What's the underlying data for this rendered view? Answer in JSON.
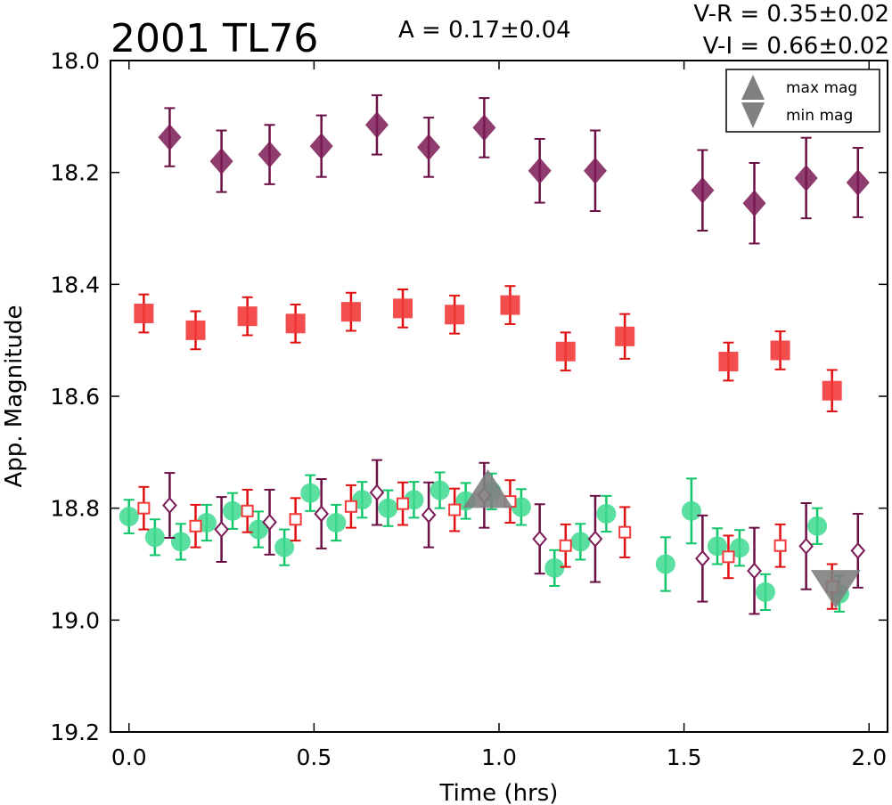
{
  "chart_data": {
    "type": "scatter",
    "title": "2001 TL76",
    "amplitude": "A  = 0.17±0.04",
    "colors_vr": "V-R = 0.35±0.02",
    "colors_vi": "V-I  = 0.66±0.02",
    "xlabel": "Time (hrs)",
    "ylabel": "App. Magnitude",
    "xlim": [
      -0.05,
      2.05
    ],
    "ylim": [
      19.2,
      18.0
    ],
    "y_inverted": true,
    "x_ticks": [
      "0.0",
      "0.5",
      "1.0",
      "1.5",
      "2.0"
    ],
    "y_ticks": [
      "18.0",
      "18.2",
      "18.4",
      "18.6",
      "18.8",
      "19.0",
      "19.2"
    ],
    "legend": {
      "placement": "top-right",
      "entries": [
        {
          "label": "max mag",
          "marker": "triangle-up",
          "color": "#808080"
        },
        {
          "label": "min mag",
          "marker": "triangle-down",
          "color": "#808080"
        }
      ]
    },
    "series": [
      {
        "marker": "diamond",
        "color": "#7b1a55",
        "ecolor": "#6b1045",
        "x": [
          0.11,
          0.25,
          0.38,
          0.52,
          0.67,
          0.81,
          0.96,
          1.11,
          1.26,
          1.55,
          1.69,
          1.83,
          1.97
        ],
        "y": [
          18.137,
          18.18,
          18.168,
          18.153,
          18.115,
          18.155,
          18.12,
          18.197,
          18.197,
          18.232,
          18.255,
          18.21,
          18.218
        ],
        "err": [
          0.052,
          0.055,
          0.053,
          0.055,
          0.053,
          0.053,
          0.053,
          0.057,
          0.072,
          0.072,
          0.072,
          0.072,
          0.062
        ]
      },
      {
        "marker": "square",
        "color": "#f23a3a",
        "ecolor": "#e01010",
        "x": [
          0.04,
          0.18,
          0.32,
          0.45,
          0.6,
          0.74,
          0.88,
          1.03,
          1.18,
          1.34,
          1.62,
          1.76,
          1.9
        ],
        "y": [
          18.452,
          18.482,
          18.457,
          18.47,
          18.449,
          18.443,
          18.454,
          18.437,
          18.52,
          18.493,
          18.538,
          18.518,
          18.59
        ],
        "err": [
          0.034,
          0.034,
          0.034,
          0.034,
          0.034,
          0.034,
          0.034,
          0.034,
          0.034,
          0.04,
          0.034,
          0.034,
          0.037
        ]
      },
      {
        "marker": "circle",
        "color": "#3ed98f",
        "ecolor": "#10c56a",
        "x": [
          0.0,
          0.07,
          0.14,
          0.21,
          0.28,
          0.35,
          0.42,
          0.49,
          0.56,
          0.63,
          0.7,
          0.77,
          0.84,
          0.91,
          0.98,
          1.06,
          1.15,
          1.22,
          1.29,
          1.45,
          1.52,
          1.59,
          1.65,
          1.72,
          1.86,
          1.92
        ],
        "y": [
          18.815,
          18.852,
          18.86,
          18.826,
          18.805,
          18.838,
          18.87,
          18.773,
          18.826,
          18.785,
          18.8,
          18.785,
          18.768,
          18.787,
          18.77,
          18.798,
          18.907,
          18.86,
          18.81,
          18.9,
          18.805,
          18.868,
          18.871,
          18.95,
          18.832,
          18.953
        ],
        "err": [
          0.03,
          0.032,
          0.032,
          0.032,
          0.032,
          0.032,
          0.032,
          0.032,
          0.032,
          0.032,
          0.032,
          0.032,
          0.032,
          0.032,
          0.032,
          0.032,
          0.032,
          0.032,
          0.032,
          0.048,
          0.058,
          0.032,
          0.032,
          0.032,
          0.032,
          0.032
        ]
      },
      {
        "marker": "diamond-open",
        "color": "#7b1a55",
        "ecolor": "#6b1045",
        "x": [
          0.11,
          0.25,
          0.38,
          0.52,
          0.67,
          0.81,
          0.96,
          1.11,
          1.26,
          1.55,
          1.69,
          1.83,
          1.97
        ],
        "y": [
          18.795,
          18.838,
          18.825,
          18.81,
          18.772,
          18.812,
          18.777,
          18.855,
          18.855,
          18.89,
          18.912,
          18.868,
          18.876
        ],
        "err": [
          0.058,
          0.058,
          0.058,
          0.062,
          0.058,
          0.058,
          0.058,
          0.062,
          0.077,
          0.077,
          0.077,
          0.077,
          0.066
        ]
      },
      {
        "marker": "square-open",
        "color": "#f23a3a",
        "ecolor": "#e01010",
        "x": [
          0.04,
          0.18,
          0.32,
          0.45,
          0.6,
          0.74,
          0.88,
          1.03,
          1.18,
          1.34,
          1.62,
          1.76,
          1.9
        ],
        "y": [
          18.8,
          18.832,
          18.805,
          18.82,
          18.797,
          18.792,
          18.803,
          18.788,
          18.867,
          18.843,
          18.887,
          18.867,
          18.94
        ],
        "err": [
          0.038,
          0.038,
          0.038,
          0.038,
          0.038,
          0.038,
          0.038,
          0.038,
          0.038,
          0.045,
          0.038,
          0.038,
          0.04
        ]
      }
    ],
    "extrema": [
      {
        "label": "max mag",
        "marker": "triangle-up",
        "x": 0.97,
        "y": 18.775,
        "color": "#808080"
      },
      {
        "label": "min mag",
        "marker": "triangle-down",
        "x": 1.91,
        "y": 18.935,
        "color": "#808080"
      }
    ]
  }
}
